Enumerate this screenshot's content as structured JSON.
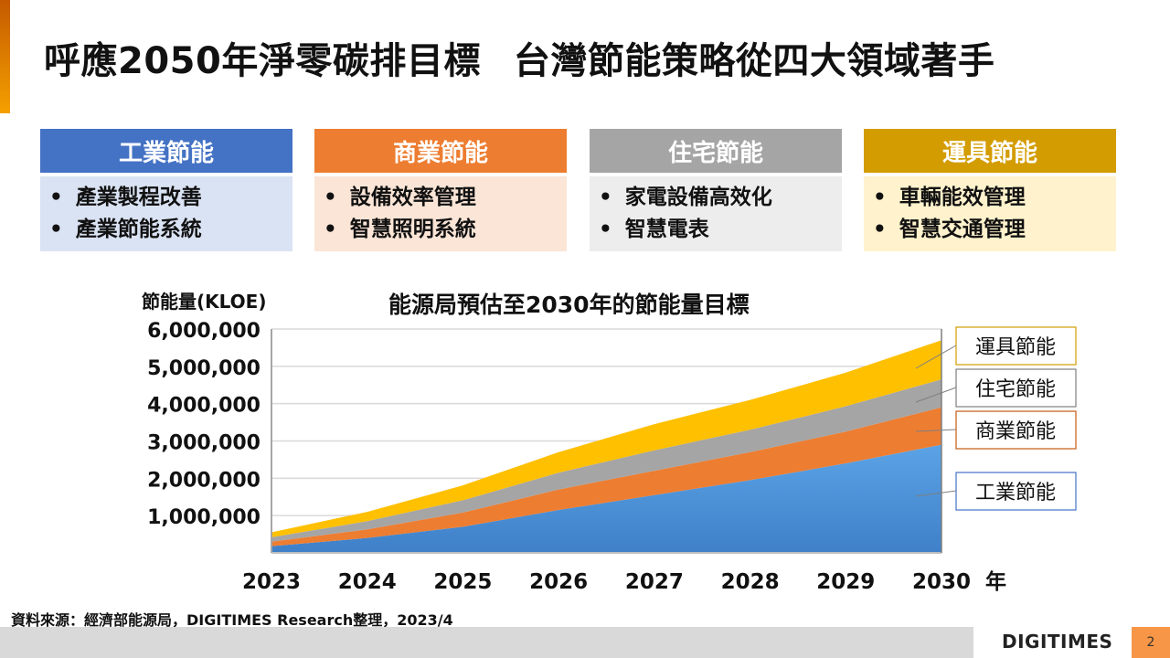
{
  "slide": {
    "title_part1": "呼應2050年淨零碳排目標",
    "title_part2": "台灣節能策略從四大領域著手",
    "page_number": "2",
    "logo_text": "DIGITIMES",
    "source": "資料來源：經濟部能源局，DIGITIMES Research整理，2023/4"
  },
  "sectors": [
    {
      "name": "工業節能",
      "items": [
        "產業製程改善",
        "產業節能系統"
      ],
      "head_color": "#4472c4",
      "body_color": "#dae3f3"
    },
    {
      "name": "商業節能",
      "items": [
        "設備效率管理",
        "智慧照明系統"
      ],
      "head_color": "#ed7d31",
      "body_color": "#fbe5d6"
    },
    {
      "name": "住宅節能",
      "items": [
        "家電設備高效化",
        "智慧電表"
      ],
      "head_color": "#a5a5a5",
      "body_color": "#ededed"
    },
    {
      "name": "運具節能",
      "items": [
        "車輛能效管理",
        "智慧交通管理"
      ],
      "head_color": "#d39c00",
      "body_color": "#fff2cc"
    }
  ],
  "chart_data": {
    "type": "area",
    "stacked": true,
    "title": "能源局預估至2030年的節能量目標",
    "ylabel": "節能量(KLOE)",
    "xlabel": "",
    "x_unit_label": "年",
    "categories": [
      "2023",
      "2024",
      "2025",
      "2026",
      "2027",
      "2028",
      "2029",
      "2030"
    ],
    "ylim": [
      0,
      6000000
    ],
    "yticks": [
      1000000,
      2000000,
      3000000,
      4000000,
      5000000,
      6000000
    ],
    "ytick_labels": [
      "1,000,000",
      "2,000,000",
      "3,000,000",
      "4,000,000",
      "5,000,000",
      "6,000,000"
    ],
    "grid": true,
    "legend_position": "right",
    "series": [
      {
        "name": "工業節能",
        "color": "#5b9bd5",
        "values": [
          180000,
          400000,
          700000,
          1150000,
          1550000,
          1950000,
          2400000,
          2900000
        ]
      },
      {
        "name": "商業節能",
        "color": "#ed7d31",
        "values": [
          120000,
          230000,
          380000,
          550000,
          650000,
          750000,
          850000,
          1000000
        ]
      },
      {
        "name": "住宅節能",
        "color": "#a5a5a5",
        "values": [
          120000,
          220000,
          330000,
          450000,
          550000,
          600000,
          680000,
          750000
        ]
      },
      {
        "name": "運具節能",
        "color": "#ffc000",
        "values": [
          130000,
          250000,
          400000,
          550000,
          700000,
          800000,
          900000,
          1050000
        ]
      }
    ]
  }
}
